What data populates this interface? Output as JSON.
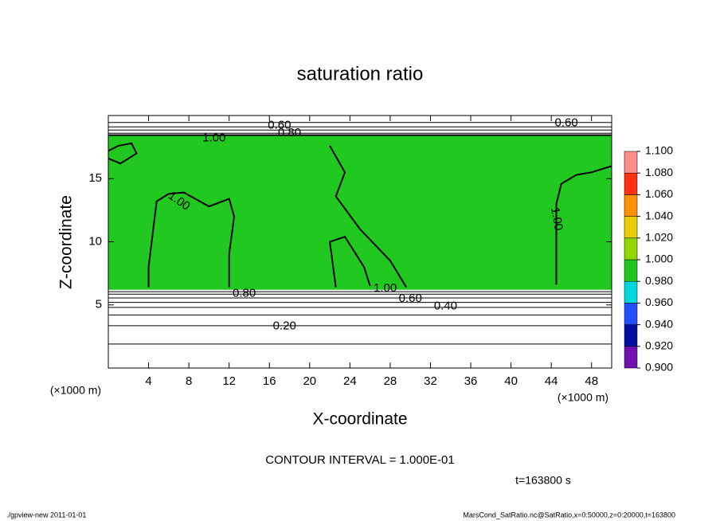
{
  "chart_data": {
    "type": "contour",
    "title": "saturation ratio",
    "x_label": "X-coordinate",
    "y_label": "Z-coordinate",
    "x_unit": "(×1000 m)",
    "y_unit": "(×1000 m)",
    "xlim": [
      0,
      50
    ],
    "ylim": [
      0,
      20
    ],
    "xticks": [
      4,
      8,
      12,
      16,
      20,
      24,
      28,
      32,
      36,
      40,
      44,
      48
    ],
    "yticks": [
      5,
      10,
      15
    ],
    "shaded": {
      "value": 0.99,
      "ylim": [
        6.2,
        18.4
      ]
    },
    "colorbar": {
      "ticks": [
        {
          "value": 0.9,
          "label": "0.900"
        },
        {
          "value": 0.92,
          "label": "0.920"
        },
        {
          "value": 0.94,
          "label": "0.940"
        },
        {
          "value": 0.96,
          "label": "0.960"
        },
        {
          "value": 0.98,
          "label": "0.980"
        },
        {
          "value": 1.0,
          "label": "1.000"
        },
        {
          "value": 1.02,
          "label": "1.020"
        },
        {
          "value": 1.04,
          "label": "1.040"
        },
        {
          "value": 1.06,
          "label": "1.060"
        },
        {
          "value": 1.08,
          "label": "1.080"
        },
        {
          "value": 1.1,
          "label": "1.100"
        }
      ],
      "colors": [
        "#7010b0",
        "#0010a0",
        "#2050ff",
        "#00d8e0",
        "#20c820",
        "#90d800",
        "#e8d000",
        "#ff9000",
        "#ff3010",
        "#ff8c8c"
      ]
    },
    "level_lines": [
      {
        "level": 0.1,
        "y": 1.9
      },
      {
        "level": 0.2,
        "y": 3.35
      },
      {
        "level": 0.3,
        "y": 4.2
      },
      {
        "level": 0.4,
        "y": 4.8
      },
      {
        "level": 0.5,
        "y": 5.2
      },
      {
        "level": 0.6,
        "y": 5.55
      },
      {
        "level": 0.7,
        "y": 5.85
      },
      {
        "level": 0.8,
        "y": 6.05
      },
      {
        "level": 1.0,
        "y": 18.45
      },
      {
        "level": 0.9,
        "y": 18.6
      },
      {
        "level": 0.8,
        "y": 18.85
      },
      {
        "level": 0.7,
        "y": 19.1
      },
      {
        "level": 0.6,
        "y": 19.45
      }
    ],
    "contours": [
      {
        "level": 1.0,
        "points": [
          [
            4,
            6.4
          ],
          [
            4,
            8
          ],
          [
            4.8,
            13.2
          ],
          [
            6,
            13.8
          ],
          [
            7.5,
            13.9
          ],
          [
            10,
            12.8
          ],
          [
            12,
            13.4
          ],
          [
            12.5,
            12
          ],
          [
            12,
            9
          ],
          [
            12,
            6.4
          ]
        ]
      },
      {
        "level": 1.0,
        "points": [
          [
            22,
            17.6
          ],
          [
            23.5,
            15.5
          ],
          [
            22.6,
            13.6
          ],
          [
            25,
            11
          ],
          [
            28,
            8.5
          ],
          [
            29.6,
            6.4
          ]
        ]
      },
      {
        "level": 1.0,
        "points": [
          [
            22.6,
            6.4
          ],
          [
            22,
            10
          ],
          [
            23.5,
            10.4
          ],
          [
            25.4,
            8
          ],
          [
            26,
            6.5
          ]
        ]
      },
      {
        "level": 1.0,
        "points": [
          [
            44.5,
            6.6
          ],
          [
            44.5,
            13
          ],
          [
            45,
            14.6
          ],
          [
            46.5,
            15.3
          ],
          [
            48,
            15.5
          ],
          [
            50,
            16
          ]
        ]
      },
      {
        "level": 1.0,
        "points": [
          [
            0,
            16.6
          ],
          [
            1.2,
            16.2
          ],
          [
            2.8,
            17
          ],
          [
            2.3,
            17.8
          ],
          [
            1,
            17.6
          ],
          [
            0,
            17.2
          ]
        ]
      }
    ],
    "contour_labels": [
      {
        "value": 1.0,
        "label": "1.00",
        "x": 10.5,
        "y": 18.2
      },
      {
        "value": 0.8,
        "label": "0.80",
        "x": 18,
        "y": 18.6
      },
      {
        "value": 0.6,
        "label": "0.60",
        "x": 17,
        "y": 19.2
      },
      {
        "value": 0.6,
        "label": "0.60",
        "x": 45.5,
        "y": 19.4
      },
      {
        "value": 1.0,
        "label": "1.00",
        "x": 7,
        "y": 13.2
      },
      {
        "value": 1.0,
        "label": "1.00",
        "x": 44.5,
        "y": 11.8
      },
      {
        "value": 0.8,
        "label": "0.80",
        "x": 13.5,
        "y": 5.9
      },
      {
        "value": 1.0,
        "label": "1.00",
        "x": 27.5,
        "y": 6.3
      },
      {
        "value": 0.6,
        "label": "0.60",
        "x": 30,
        "y": 5.5
      },
      {
        "value": 0.4,
        "label": "0.40",
        "x": 33.5,
        "y": 4.9
      },
      {
        "value": 0.2,
        "label": "0.20",
        "x": 17.5,
        "y": 3.3
      }
    ],
    "contour_interval_note": "CONTOUR INTERVAL = 1.000E-01",
    "time_label": "t=163800 s",
    "footer_left": "./gpview-new   2011-01-01",
    "footer_right": "MarsCond_SatRatio.nc@SatRatio,x=0:50000,z=0:20000,t=163800"
  }
}
